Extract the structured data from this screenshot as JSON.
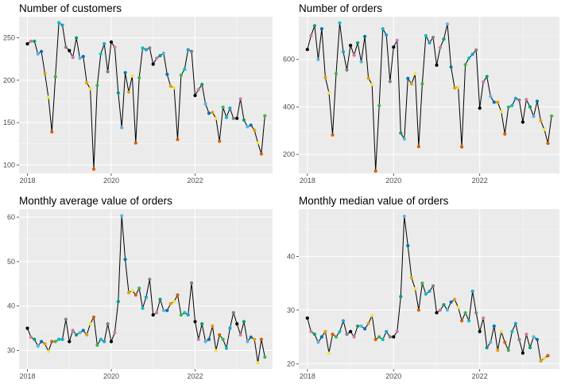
{
  "colors": {
    "month_palette": [
      "#000000",
      "#CC79A7",
      "#009E73",
      "#56B4E9",
      "#0072B2",
      "#E69F00",
      "#F0E442",
      "#D55E00",
      "#3BB44A",
      "#00BFC4",
      "#1F9FD6",
      "#7F7F7F"
    ],
    "line": "#000000",
    "panel_background": "#EBEBEB",
    "grid": "#FFFFFF"
  },
  "chart_data": [
    {
      "type": "line",
      "title": "Number of customers",
      "xlabel": "",
      "ylabel": "",
      "x_ticks": [
        "2018",
        "2020",
        "2022"
      ],
      "y_ticks": [
        100,
        150,
        200,
        250
      ],
      "xlim": [
        2017.8,
        2023.85
      ],
      "ylim": [
        90,
        275
      ],
      "grid": true,
      "x_start": 2018,
      "values": [
        243,
        246,
        246,
        231,
        234,
        208,
        180,
        139,
        204,
        268,
        265,
        239,
        235,
        227,
        250,
        226,
        228,
        197,
        190,
        95,
        194,
        231,
        243,
        210,
        245,
        239,
        185,
        144,
        209,
        186,
        205,
        126,
        203,
        238,
        236,
        238,
        219,
        226,
        229,
        232,
        207,
        193,
        191,
        130,
        206,
        213,
        236,
        234,
        182,
        189,
        195,
        172,
        161,
        162,
        155,
        128,
        168,
        156,
        167,
        155,
        155,
        178,
        153,
        145,
        147,
        141,
        126,
        113,
        158
      ]
    },
    {
      "type": "line",
      "title": "Number of orders",
      "xlabel": "",
      "ylabel": "",
      "x_ticks": [
        "2018",
        "2020",
        "2022"
      ],
      "y_ticks": [
        200,
        400,
        600
      ],
      "xlim": [
        2017.8,
        2023.85
      ],
      "ylim": [
        120,
        780
      ],
      "grid": true,
      "x_start": 2018,
      "values": [
        642,
        700,
        742,
        600,
        729,
        524,
        459,
        282,
        540,
        754,
        632,
        556,
        659,
        618,
        670,
        590,
        697,
        521,
        495,
        130,
        405,
        729,
        703,
        507,
        652,
        680,
        290,
        265,
        520,
        497,
        539,
        233,
        498,
        700,
        670,
        693,
        576,
        650,
        686,
        749,
        568,
        480,
        483,
        232,
        578,
        605,
        622,
        640,
        395,
        505,
        528,
        444,
        420,
        420,
        380,
        286,
        399,
        406,
        436,
        429,
        336,
        431,
        400,
        360,
        424,
        341,
        305,
        247,
        362
      ]
    },
    {
      "type": "line",
      "title": "Monthly average value of orders",
      "xlabel": "",
      "ylabel": "",
      "x_ticks": [
        "2018",
        "2020",
        "2022"
      ],
      "y_ticks": [
        30,
        40,
        50,
        60
      ],
      "xlim": [
        2017.8,
        2023.85
      ],
      "ylim": [
        25.8,
        61.8
      ],
      "grid": true,
      "x_start": 2018,
      "values": [
        35.0,
        33.0,
        32.5,
        31.0,
        32.0,
        31.5,
        29.8,
        32.0,
        32.0,
        32.5,
        32.5,
        37.0,
        32.0,
        34.5,
        33.5,
        34.0,
        34.5,
        33.5,
        36.0,
        37.5,
        31.2,
        32.5,
        32.0,
        36.0,
        32.0,
        34.0,
        41.0,
        60.3,
        50.5,
        43.0,
        43.5,
        42.5,
        44.0,
        39.5,
        42.0,
        46.0,
        38.0,
        38.5,
        41.5,
        39.0,
        39.0,
        40.5,
        41.0,
        42.5,
        38.0,
        38.5,
        38.0,
        45.2,
        36.5,
        32.5,
        36.0,
        32.0,
        32.5,
        35.5,
        30.0,
        33.5,
        32.5,
        30.5,
        35.0,
        38.5,
        36.0,
        33.5,
        36.5,
        32.0,
        33.0,
        32.5,
        27.2,
        32.5,
        28.5
      ]
    },
    {
      "type": "line",
      "title": "Monthly median value of orders",
      "xlabel": "",
      "ylabel": "",
      "x_ticks": [
        "2018",
        "2020",
        "2022"
      ],
      "y_ticks": [
        20,
        30,
        40
      ],
      "xlim": [
        2017.8,
        2023.85
      ],
      "ylim": [
        19.0,
        48.8
      ],
      "grid": true,
      "x_start": 2018,
      "values": [
        28.5,
        26.0,
        25.5,
        24.0,
        25.0,
        26.0,
        22.0,
        25.5,
        25.0,
        26.0,
        28.0,
        25.5,
        26.0,
        25.0,
        27.0,
        27.0,
        26.5,
        27.5,
        29.0,
        24.5,
        25.0,
        24.5,
        26.0,
        25.0,
        25.0,
        26.0,
        32.5,
        47.5,
        42.0,
        36.0,
        34.0,
        30.0,
        35.0,
        33.0,
        33.5,
        34.5,
        29.5,
        30.0,
        31.0,
        30.0,
        31.5,
        32.0,
        30.5,
        28.0,
        29.5,
        28.0,
        33.5,
        29.5,
        26.0,
        28.5,
        23.0,
        24.0,
        27.0,
        22.5,
        26.0,
        24.0,
        22.5,
        26.0,
        27.5,
        24.5,
        22.0,
        25.5,
        23.0,
        25.0,
        24.5,
        20.5,
        21.0,
        21.5
      ]
    }
  ]
}
